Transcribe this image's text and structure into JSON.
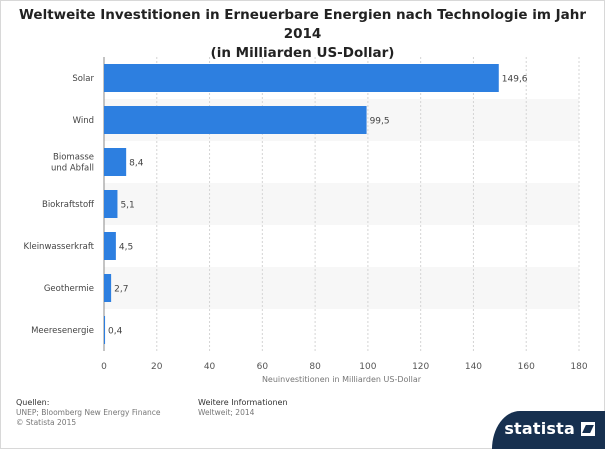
{
  "title": {
    "line1": "Weltweite Investitionen in Erneuerbare Energien nach Technologie im Jahr 2014",
    "line2": "(in Milliarden US-Dollar)"
  },
  "chart_data": {
    "type": "bar",
    "orientation": "horizontal",
    "categories": [
      "Solar",
      "Wind",
      "Biomasse\nund Abfall",
      "Biokraftstoff",
      "Kleinwasserkraft",
      "Geothermie",
      "Meeresenergie"
    ],
    "values": [
      149.6,
      99.5,
      8.4,
      5.1,
      4.5,
      2.7,
      0.4
    ],
    "value_labels": [
      "149,6",
      "99,5",
      "8,4",
      "5,1",
      "4,5",
      "2,7",
      "0,4"
    ],
    "xlabel": "Neuinvestitionen in Milliarden US-Dollar",
    "xlim": [
      0,
      180
    ],
    "xticks": [
      0,
      20,
      40,
      60,
      80,
      100,
      120,
      140,
      160,
      180
    ],
    "grid": true,
    "bar_color": "#2d7fe0"
  },
  "footer": {
    "sources_label": "Quellen:",
    "sources_text": "UNEP; Bloomberg New Energy Finance",
    "copyright": "© Statista 2015",
    "info_label": "Weitere Informationen",
    "info_text": "Weltweit; 2014"
  },
  "logo": {
    "text": "statista",
    "color": "#17304f"
  }
}
